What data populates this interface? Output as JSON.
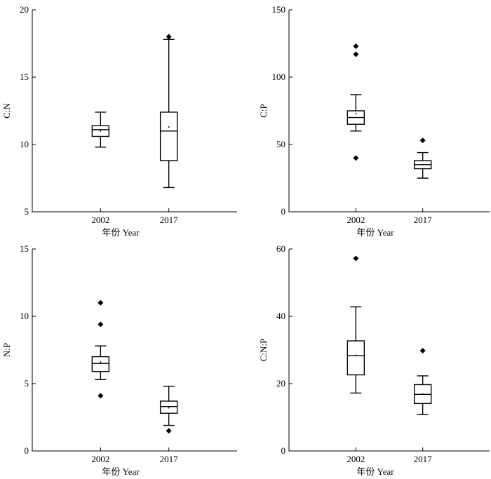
{
  "chart_data": [
    {
      "type": "box",
      "categories": [
        "2002",
        "2017"
      ],
      "xlabel": "年份 Year",
      "ylabel": "C:N",
      "ylim": [
        5,
        20
      ],
      "yticks": [
        5,
        10,
        15,
        20
      ],
      "boxes": [
        {
          "category": "2002",
          "min": 9.8,
          "q1": 10.6,
          "median": 11.1,
          "q3": 11.4,
          "max": 12.4,
          "mean": 11.0,
          "outliers": []
        },
        {
          "category": "2017",
          "min": 6.8,
          "q1": 8.8,
          "median": 11.0,
          "q3": 12.4,
          "max": 17.8,
          "mean": 11.3,
          "outliers": [
            18.0
          ]
        }
      ]
    },
    {
      "type": "box",
      "categories": [
        "2002",
        "2017"
      ],
      "xlabel": "年份 Year",
      "ylabel": "C:P",
      "ylim": [
        0,
        150
      ],
      "yticks": [
        0,
        50,
        100,
        150
      ],
      "boxes": [
        {
          "category": "2002",
          "min": 60,
          "q1": 65,
          "median": 70,
          "q3": 75,
          "max": 87,
          "mean": 73,
          "outliers": [
            123,
            117,
            40
          ]
        },
        {
          "category": "2017",
          "min": 25,
          "q1": 32,
          "median": 35,
          "q3": 38,
          "max": 44,
          "mean": 35,
          "outliers": [
            53
          ]
        }
      ]
    },
    {
      "type": "box",
      "categories": [
        "2002",
        "2017"
      ],
      "xlabel": "年份 Year",
      "ylabel": "N:P",
      "ylim": [
        0,
        15
      ],
      "yticks": [
        0,
        5,
        10,
        15
      ],
      "boxes": [
        {
          "category": "2002",
          "min": 5.3,
          "q1": 5.9,
          "median": 6.5,
          "q3": 7.0,
          "max": 7.8,
          "mean": 6.6,
          "outliers": [
            11.0,
            9.4,
            4.1
          ]
        },
        {
          "category": "2017",
          "min": 1.9,
          "q1": 2.8,
          "median": 3.3,
          "q3": 3.7,
          "max": 4.8,
          "mean": 3.2,
          "outliers": [
            1.5
          ]
        }
      ]
    },
    {
      "type": "box",
      "categories": [
        "2002",
        "2017"
      ],
      "xlabel": "年份 Year",
      "ylabel": "C:N:P",
      "ylim": [
        0,
        60
      ],
      "yticks": [
        0,
        20,
        40,
        60
      ],
      "boxes": [
        {
          "category": "2002",
          "min": 17.2,
          "q1": 22.6,
          "median": 28.3,
          "q3": 32.7,
          "max": 42.8,
          "mean": 28.4,
          "outliers": [
            57.2
          ]
        },
        {
          "category": "2017",
          "min": 10.8,
          "q1": 14.1,
          "median": 16.8,
          "q3": 19.7,
          "max": 22.3,
          "mean": 16.9,
          "outliers": [
            29.8
          ]
        }
      ]
    }
  ]
}
